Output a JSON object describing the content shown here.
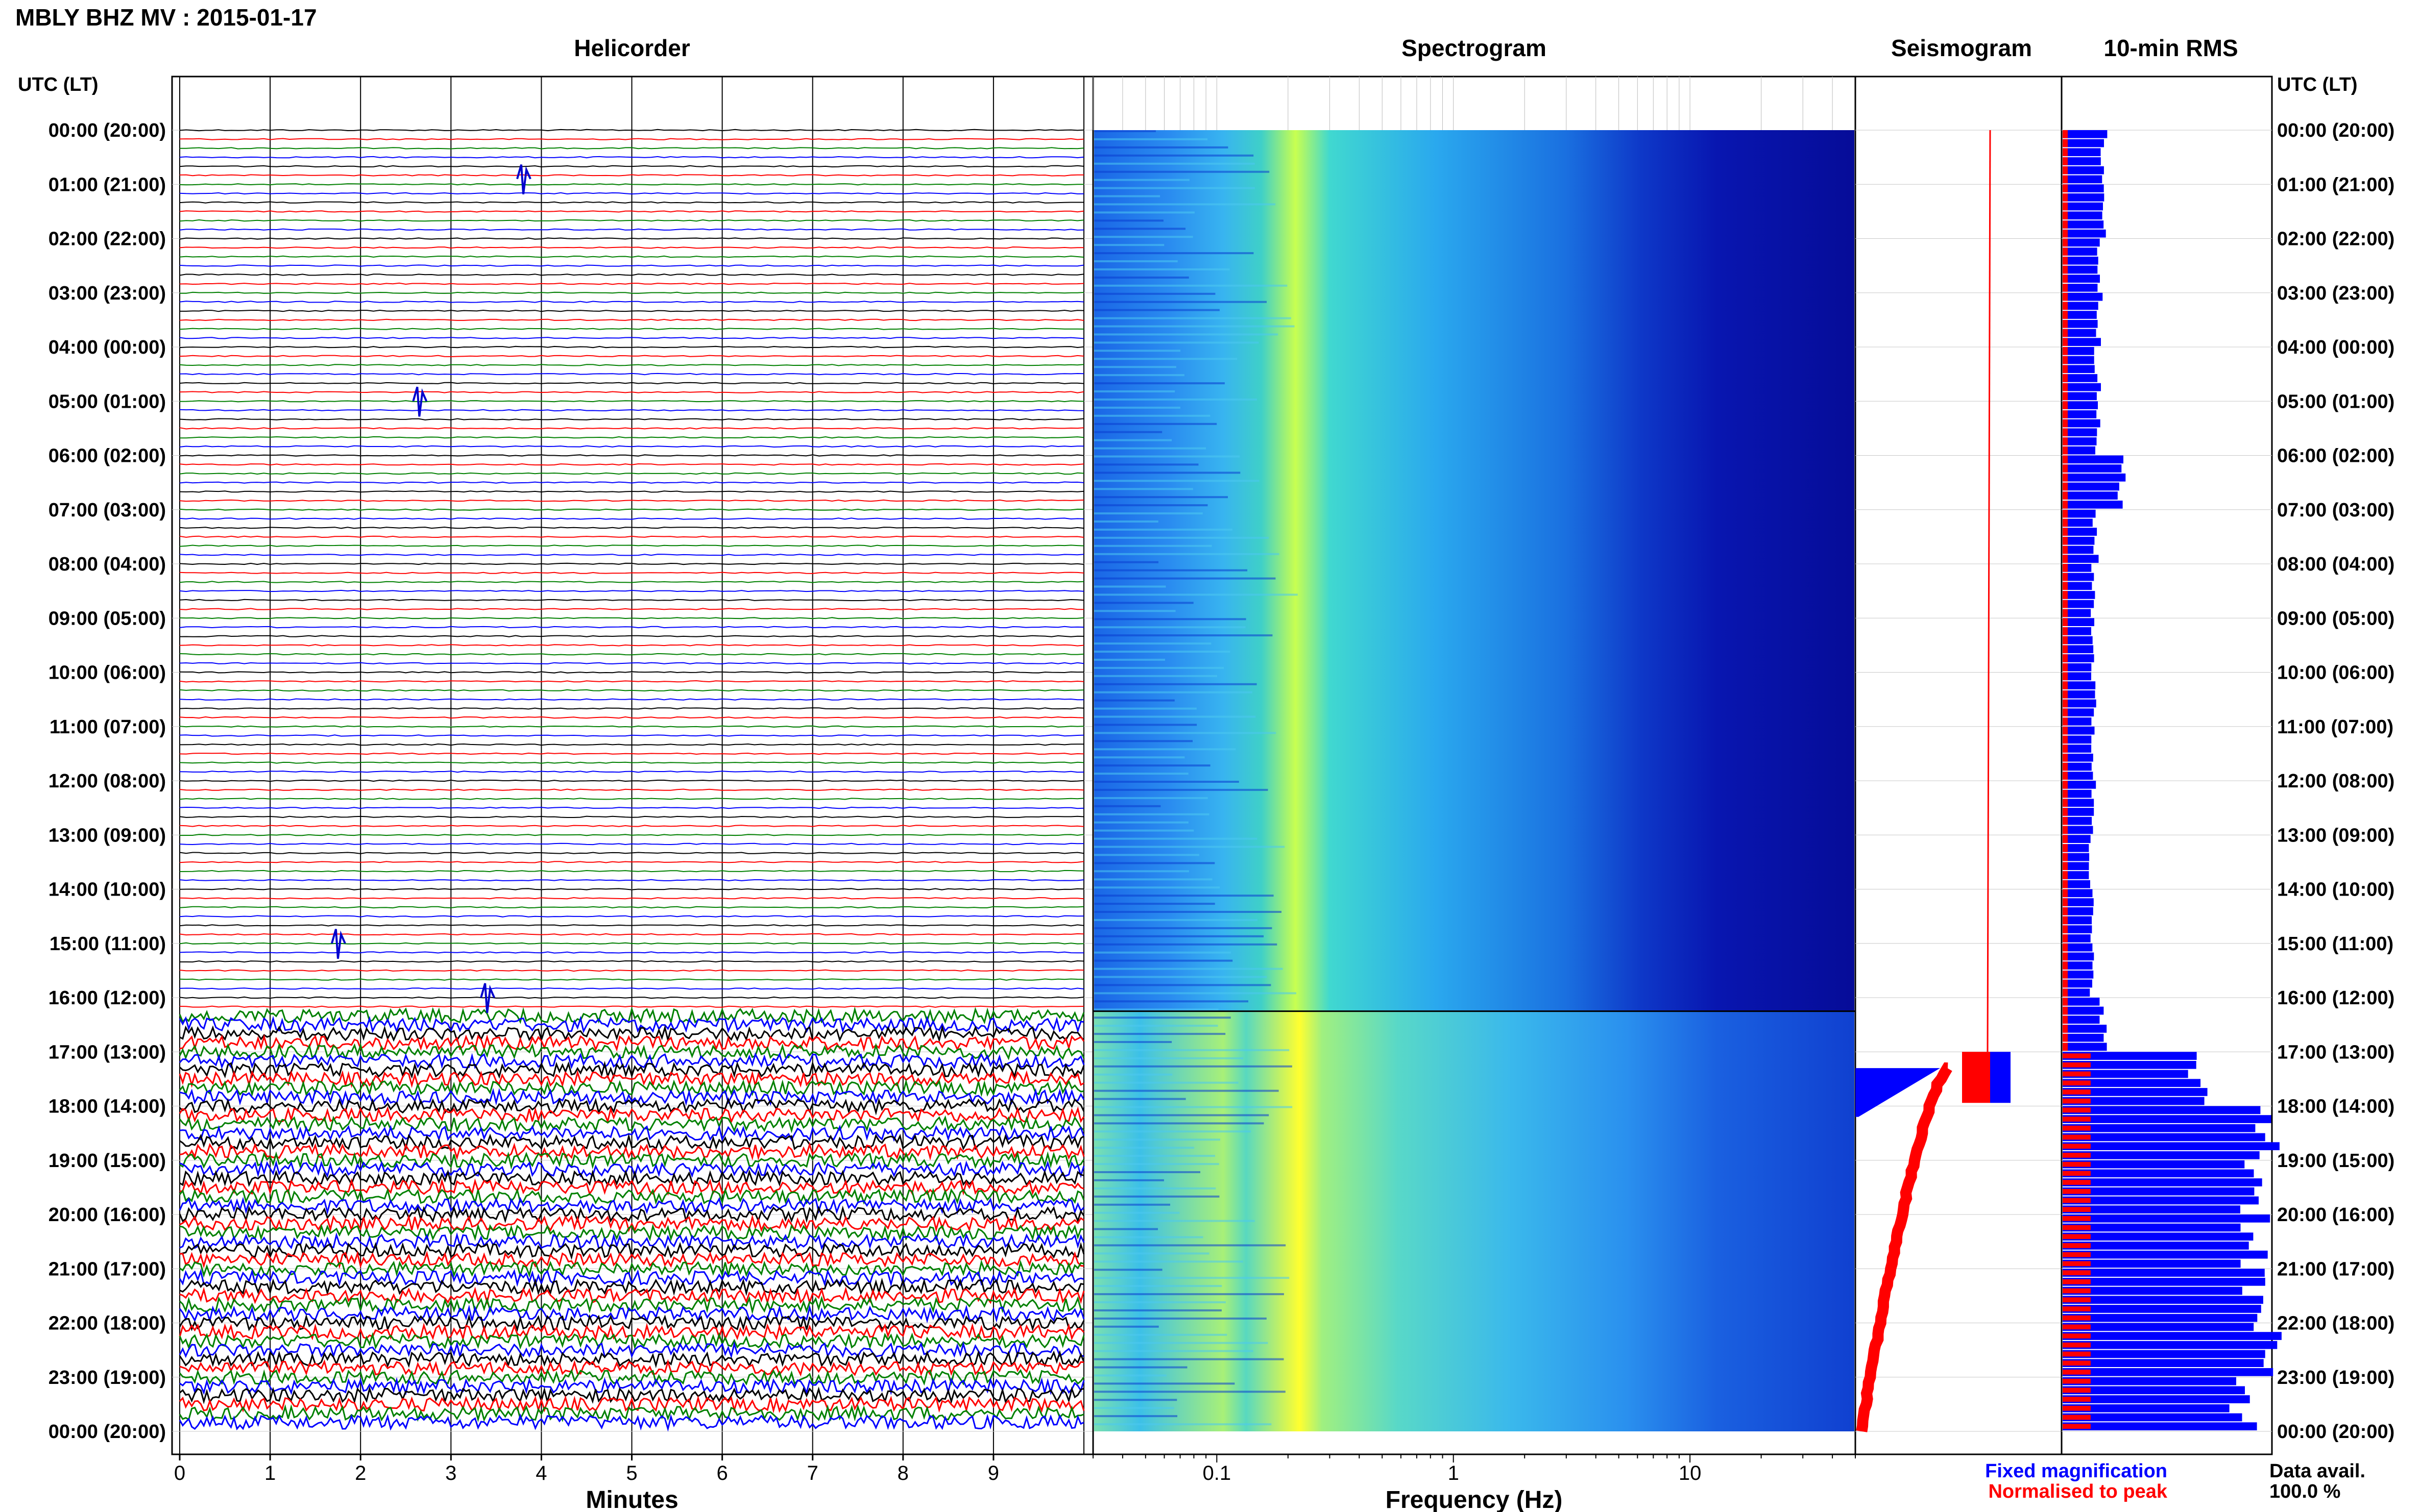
{
  "header": {
    "title": "MBLY BHZ MV : 2015-01-17"
  },
  "panels": {
    "helicorder": "Helicorder",
    "spectrogram": "Spectrogram",
    "seismogram": "Seismogram",
    "rms": "10-min RMS"
  },
  "axes": {
    "utc_label_left": "UTC (LT)",
    "utc_label_right": "UTC (LT)",
    "minutes_label": "Minutes",
    "frequency_label": "Frequency (Hz)"
  },
  "legend": {
    "fixed": "Fixed magnification",
    "normalised": "Normalised to peak",
    "colors": {
      "fixed": "#0000ff",
      "normalised": "#ff0000"
    }
  },
  "data_avail": {
    "label": "Data avail.",
    "value": "100.0 %"
  },
  "chart_data": {
    "type": "helicorder",
    "time_labels": [
      "00:00 (20:00)",
      "01:00 (21:00)",
      "02:00 (22:00)",
      "03:00 (23:00)",
      "04:00 (00:00)",
      "05:00 (01:00)",
      "06:00 (02:00)",
      "07:00 (03:00)",
      "08:00 (04:00)",
      "09:00 (05:00)",
      "10:00 (06:00)",
      "11:00 (07:00)",
      "12:00 (08:00)",
      "13:00 (09:00)",
      "14:00 (10:00)",
      "15:00 (11:00)",
      "16:00 (12:00)",
      "17:00 (13:00)",
      "18:00 (14:00)",
      "19:00 (15:00)",
      "20:00 (16:00)",
      "21:00 (17:00)",
      "22:00 (18:00)",
      "23:00 (19:00)",
      "00:00 (20:00)"
    ],
    "minutes_ticks": [
      "0",
      "1",
      "2",
      "3",
      "4",
      "5",
      "6",
      "7",
      "8",
      "9"
    ],
    "frequency_ticks": [
      "0.1",
      "1",
      "10"
    ],
    "frequency_range_hz": [
      0.03,
      50
    ],
    "minutes_range": [
      0,
      10
    ],
    "trace_colors": [
      "#000000",
      "#ff0000",
      "#008000",
      "#0000ff"
    ],
    "traces_per_hour": 6,
    "events": [
      {
        "minute": 3.8,
        "hour": 0.9
      },
      {
        "minute": 2.65,
        "hour": 5.0
      },
      {
        "minute": 1.75,
        "hour": 15.0
      },
      {
        "minute": 3.4,
        "hour": 16.0
      }
    ],
    "high_noise_start_hour": 16.25,
    "rms_fixed_relative": [
      0.2,
      0.2,
      0.18,
      0.18,
      0.17,
      0.17,
      0.28,
      0.16,
      0.15,
      0.15,
      0.15,
      0.15,
      0.15,
      0.14,
      0.14,
      0.14,
      0.2,
      0.65,
      1.0,
      0.95,
      0.95,
      0.93,
      0.97,
      0.9
    ]
  }
}
